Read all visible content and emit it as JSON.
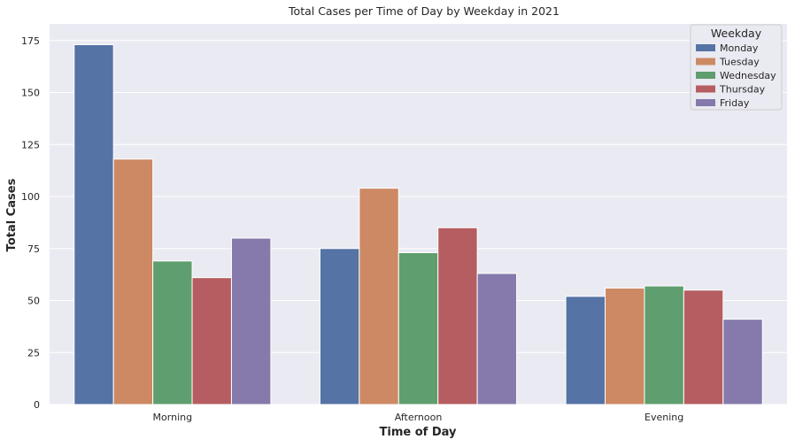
{
  "chart_data": {
    "type": "bar",
    "title": "Total Cases per Time of Day by Weekday in 2021",
    "xlabel": "Time of Day",
    "ylabel": "Total Cases",
    "categories": [
      "Morning",
      "Afternoon",
      "Evening"
    ],
    "series": [
      {
        "name": "Monday",
        "color": "#5573a5",
        "values": [
          173,
          75,
          52
        ]
      },
      {
        "name": "Tuesday",
        "color": "#cc8963",
        "values": [
          118,
          104,
          56
        ]
      },
      {
        "name": "Wednesday",
        "color": "#5f9e6e",
        "values": [
          69,
          73,
          57
        ]
      },
      {
        "name": "Thursday",
        "color": "#b55d60",
        "values": [
          61,
          85,
          55
        ]
      },
      {
        "name": "Friday",
        "color": "#857aab",
        "values": [
          80,
          63,
          41
        ]
      }
    ],
    "ylim": [
      0,
      183
    ],
    "yticks": [
      0,
      25,
      50,
      75,
      100,
      125,
      150,
      175
    ],
    "grid": true,
    "legend": {
      "title": "Weekday",
      "position": "top-right"
    },
    "background_color": "#eaeaf2",
    "grid_color": "#ffffff"
  }
}
